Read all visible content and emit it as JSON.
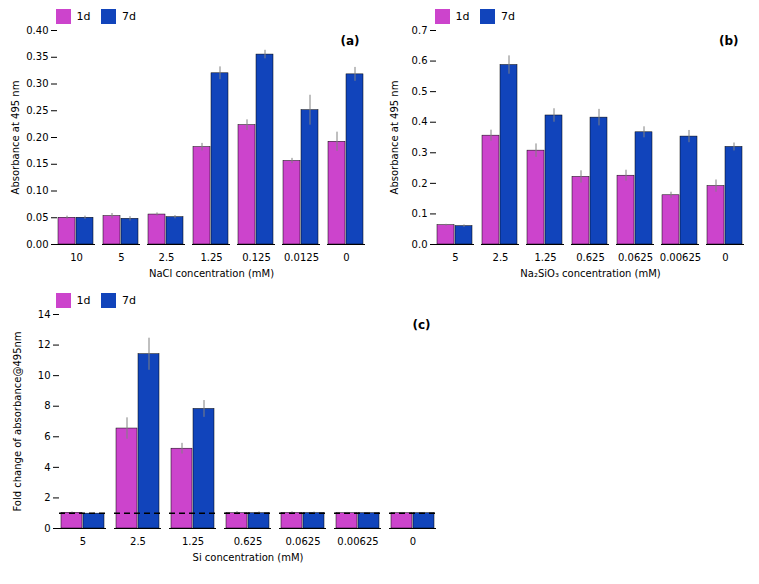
{
  "chart_data": [
    {
      "type": "bar",
      "categories": [
        "10",
        "5",
        "2.5",
        "1.25",
        "0.125",
        "0.0125",
        "0"
      ],
      "xlabel": "NaCl concentration (mM)",
      "ylabel": "Absorbance at 495 nm",
      "ylim": [
        0,
        0.4
      ],
      "yticks": [
        {
          "value": 0,
          "label": "0.00"
        },
        {
          "value": 0.05,
          "label": "0.05"
        },
        {
          "value": 0.1,
          "label": "0.10"
        },
        {
          "value": 0.15,
          "label": "0.15"
        },
        {
          "value": 0.2,
          "label": "0.20"
        },
        {
          "value": 0.25,
          "label": "0.25"
        },
        {
          "value": 0.3,
          "label": "0.30"
        },
        {
          "value": 0.35,
          "label": "0.35"
        },
        {
          "value": 0.4,
          "label": "0.40"
        }
      ],
      "series": [
        {
          "name": "1d",
          "color": "#CC44CC",
          "values": [
            0.05,
            0.053,
            0.056,
            0.182,
            0.223,
            0.156,
            0.192
          ],
          "errors": [
            0.003,
            0.005,
            0.003,
            0.007,
            0.01,
            0.005,
            0.018
          ]
        },
        {
          "name": "7d",
          "color": "#1144BB",
          "values": [
            0.05,
            0.048,
            0.051,
            0.32,
            0.355,
            0.251,
            0.318
          ],
          "errors": [
            0.003,
            0.004,
            0.003,
            0.012,
            0.008,
            0.028,
            0.013
          ]
        }
      ],
      "legend": "top",
      "annotations": [
        "(a)"
      ]
    },
    {
      "type": "bar",
      "categories": [
        "5",
        "2.5",
        "1.25",
        "0.625",
        "0.0625",
        "0.00625",
        "0"
      ],
      "xlabel": "Na₂SiO₃ concentration (mM)",
      "ylabel": "Absorbance at 495 nm",
      "ylim": [
        0,
        0.7
      ],
      "yticks": [
        {
          "value": 0,
          "label": "0.0"
        },
        0.1,
        0.2,
        0.3,
        0.4,
        0.5,
        0.6,
        0.7
      ],
      "series": [
        {
          "name": "1d",
          "color": "#CC44CC",
          "values": [
            0.063,
            0.356,
            0.307,
            0.221,
            0.225,
            0.161,
            0.191
          ],
          "errors": [
            0.003,
            0.018,
            0.022,
            0.02,
            0.018,
            0.01,
            0.02
          ]
        },
        {
          "name": "7d",
          "color": "#1144BB",
          "values": [
            0.06,
            0.587,
            0.422,
            0.415,
            0.367,
            0.353,
            0.319
          ],
          "errors": [
            0.004,
            0.03,
            0.022,
            0.027,
            0.018,
            0.02,
            0.013
          ]
        }
      ],
      "legend": "top",
      "annotations": [
        "(b)"
      ]
    },
    {
      "type": "bar",
      "categories": [
        "5",
        "2.5",
        "1.25",
        "0.625",
        "0.0625",
        "0.00625",
        "0"
      ],
      "xlabel": "Si concentration (mM)",
      "ylabel": "Fold change of absorbance@495nm",
      "ylim": [
        0,
        14
      ],
      "yticks": [
        0,
        2,
        4,
        6,
        8,
        10,
        12,
        14
      ],
      "series": [
        {
          "name": "1d",
          "color": "#CC44CC",
          "values": [
            1.03,
            6.54,
            5.22,
            1.0,
            1.02,
            1.0,
            1.0
          ],
          "errors": [
            0.05,
            0.7,
            0.35,
            0.1,
            0.07,
            0.05,
            0.05
          ]
        },
        {
          "name": "7d",
          "color": "#1144BB",
          "values": [
            0.97,
            11.4,
            7.82,
            1.0,
            1.01,
            1.0,
            1.0
          ],
          "errors": [
            0.04,
            1.05,
            0.55,
            0.08,
            0.06,
            0.05,
            0.05
          ]
        }
      ],
      "hline": {
        "value": 1.0,
        "line_style": "dashed",
        "color": "black"
      },
      "legend": "top",
      "annotations": [
        "(c)"
      ]
    }
  ]
}
